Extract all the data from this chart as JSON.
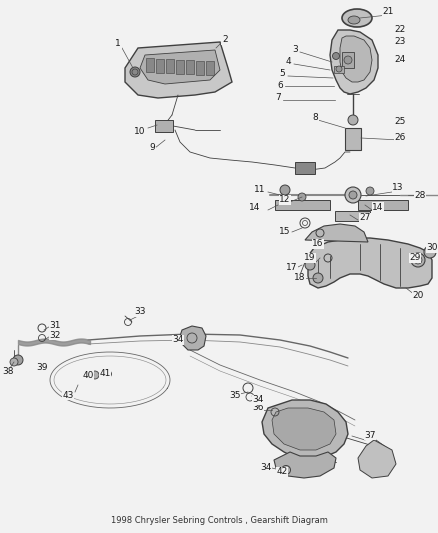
{
  "title": "1998 Chrysler Sebring Controls , Gearshift Diagram",
  "bg_color": "#f0f0f0",
  "fig_width": 4.38,
  "fig_height": 5.33,
  "dpi": 100,
  "lc": "#404040",
  "lc2": "#606060",
  "lw1": 0.6,
  "lw2": 1.0,
  "lw3": 1.5,
  "fs": 6.5
}
